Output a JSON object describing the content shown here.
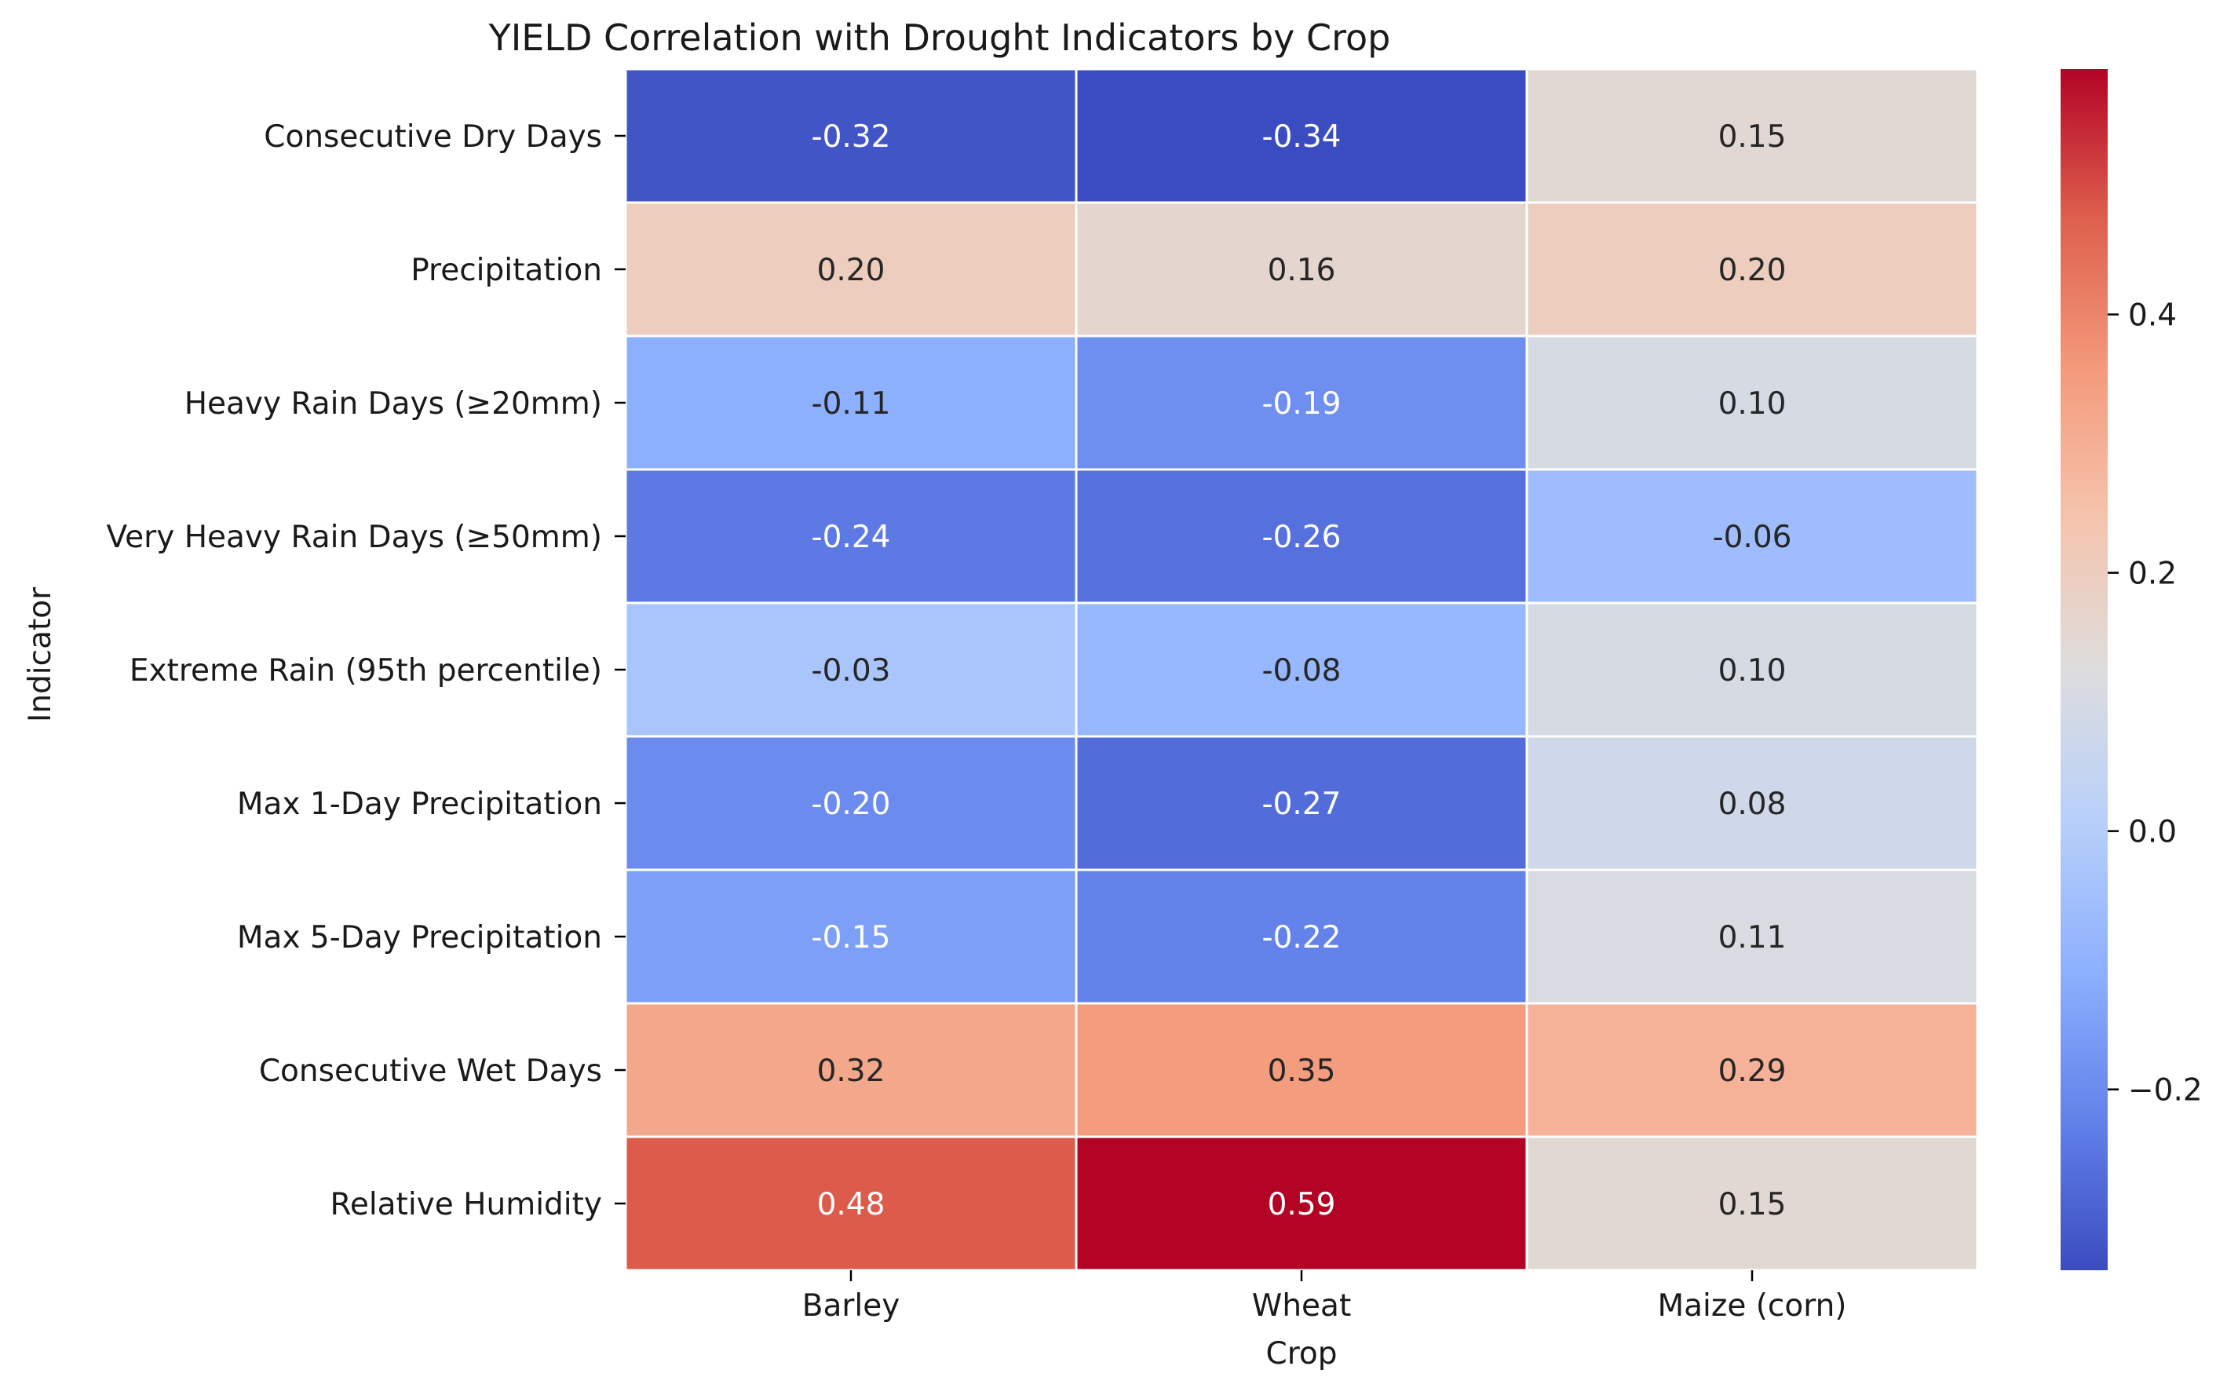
{
  "chart_data": {
    "type": "heatmap",
    "title": "YIELD Correlation with Drought Indicators by Crop",
    "xlabel": "Crop",
    "ylabel": "Indicator",
    "x_categories": [
      "Barley",
      "Wheat",
      "Maize (corn)"
    ],
    "y_categories": [
      "Consecutive Dry Days",
      "Precipitation",
      "Heavy Rain Days (≥20mm)",
      "Very Heavy Rain Days (≥50mm)",
      "Extreme Rain (95th percentile)",
      "Max 1-Day Precipitation",
      "Max 5-Day Precipitation",
      "Consecutive Wet Days",
      "Relative Humidity"
    ],
    "values": [
      [
        -0.32,
        -0.34,
        0.15
      ],
      [
        0.2,
        0.16,
        0.2
      ],
      [
        -0.11,
        -0.19,
        0.1
      ],
      [
        -0.24,
        -0.26,
        -0.06
      ],
      [
        -0.03,
        -0.08,
        0.1
      ],
      [
        -0.2,
        -0.27,
        0.08
      ],
      [
        -0.15,
        -0.22,
        0.11
      ],
      [
        0.32,
        0.35,
        0.29
      ],
      [
        0.48,
        0.59,
        0.15
      ]
    ],
    "value_format": "0.00",
    "colormap": "coolwarm",
    "color_range": [
      -0.34,
      0.59
    ],
    "colorbar": {
      "ticks": [
        -0.2,
        0.0,
        0.2,
        0.4
      ],
      "tick_labels": [
        "−0.2",
        "0.0",
        "0.2",
        "0.4"
      ],
      "position": "right"
    },
    "cell_border_color": "#ffffff",
    "grid": false
  }
}
